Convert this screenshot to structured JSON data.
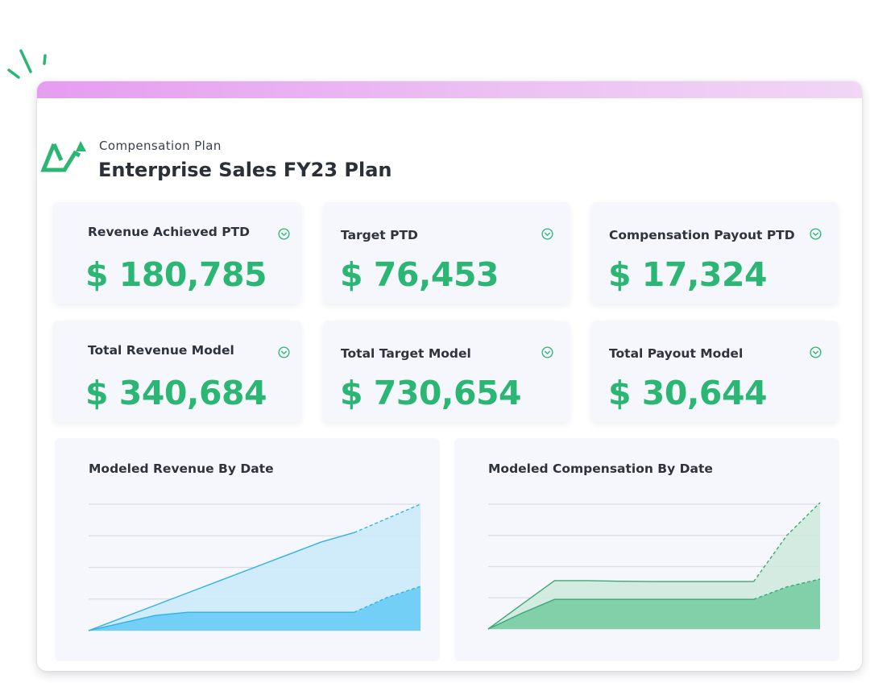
{
  "header": {
    "subtitle": "Compensation Plan",
    "title": "Enterprise Sales FY23 Plan"
  },
  "kpis": [
    {
      "label": "Revenue Achieved PTD",
      "value": "$ 180,785"
    },
    {
      "label": "Target PTD",
      "value": "$ 76,453"
    },
    {
      "label": "Compensation Payout PTD",
      "value": "$ 17,324"
    },
    {
      "label": "Total Revenue Model",
      "value": "$ 340,684"
    },
    {
      "label": "Total Target Model",
      "value": "$ 730,654"
    },
    {
      "label": "Total Payout Model",
      "value": "$ 30,644"
    }
  ],
  "colors": {
    "accent_green": "#2bb673",
    "blue_line": "#2fb3e6",
    "blue_fill": "#6fcdf5",
    "blue_light": "#cce9fa",
    "green_line": "#3aa878",
    "green_fill": "#7ccfa6",
    "green_light": "#cfe9dd",
    "topbar": "#e59df0"
  },
  "icons": {
    "kpi": "chevron-down-circle-icon",
    "logo": "trend-arrow-logo-icon",
    "decor": "spark-lines-icon"
  },
  "charts": {
    "revenue": {
      "title": "Modeled Revenue By Date"
    },
    "compensation": {
      "title": "Modeled Compensation By Date"
    }
  },
  "chart_data": [
    {
      "type": "area",
      "title": "Modeled Revenue By Date",
      "xlabel": "",
      "ylabel": "",
      "grid": true,
      "x": [
        0,
        1,
        2,
        3,
        4,
        5,
        6,
        7,
        8,
        9,
        10
      ],
      "ylim": [
        0,
        4
      ],
      "series": [
        {
          "values": [
            0,
            0.4,
            0.8,
            1.2,
            1.6,
            2.0,
            2.4,
            2.8,
            3.1,
            3.55,
            4.0
          ],
          "style": "projected-after-index-8"
        },
        {
          "values": [
            0,
            0.24,
            0.48,
            0.58,
            0.58,
            0.58,
            0.58,
            0.58,
            0.58,
            1.05,
            1.4
          ],
          "style": "projected-after-index-8"
        }
      ]
    },
    {
      "type": "area",
      "title": "Modeled Compensation By Date",
      "xlabel": "",
      "ylabel": "",
      "grid": true,
      "x": [
        0,
        1,
        2,
        3,
        4,
        5,
        6,
        7,
        8,
        9,
        10
      ],
      "ylim": [
        0,
        4
      ],
      "series": [
        {
          "values": [
            0,
            0.78,
            1.55,
            1.55,
            1.53,
            1.52,
            1.52,
            1.52,
            1.52,
            3.0,
            4.05
          ],
          "style": "projected-after-index-8"
        },
        {
          "values": [
            0,
            0.5,
            0.95,
            0.95,
            0.95,
            0.95,
            0.95,
            0.95,
            0.95,
            1.35,
            1.6
          ],
          "style": "projected-after-index-8"
        }
      ]
    }
  ]
}
